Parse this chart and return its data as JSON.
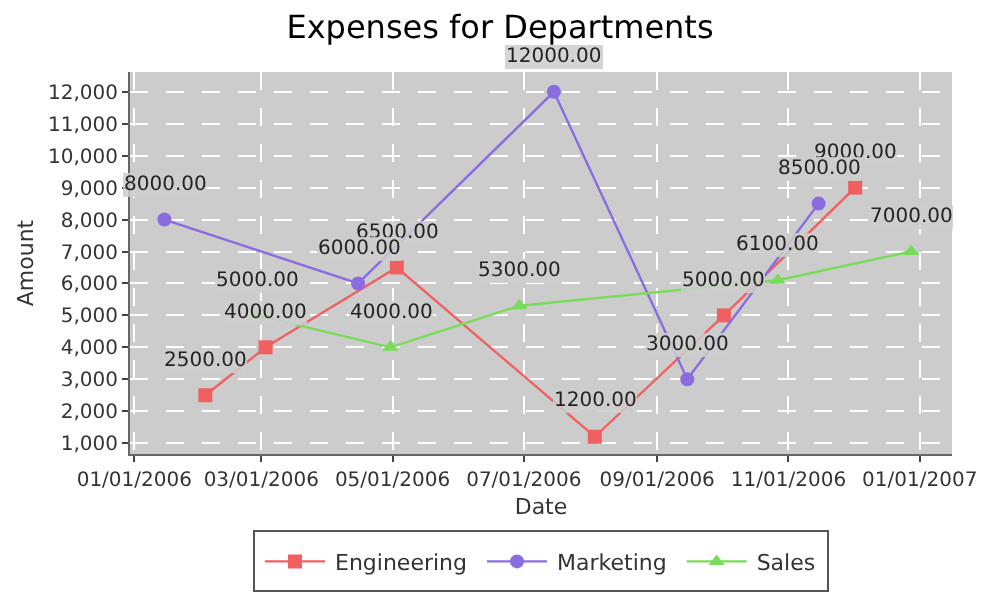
{
  "chart_data": {
    "type": "line",
    "title": "Expenses for Departments",
    "xlabel": "Date",
    "ylabel": "Amount",
    "series": [
      {
        "name": "Engineering",
        "color": "#f06060",
        "marker": "square",
        "x": [
          "2006-02-03",
          "2006-03-03",
          "2006-05-03",
          "2006-08-03",
          "2006-10-02",
          "2006-12-02"
        ],
        "values": [
          2500,
          4000,
          6500,
          1200,
          5000,
          9000
        ],
        "value_labels": [
          "2500.00",
          "4000.00",
          "6500.00",
          "1200.00",
          "5000.00",
          "9000.00"
        ]
      },
      {
        "name": "Marketing",
        "color": "#8a6be0",
        "marker": "circle",
        "x": [
          "2006-01-15",
          "2006-04-15",
          "2006-07-15",
          "2006-09-15",
          "2006-11-15"
        ],
        "values": [
          8000,
          6000,
          12000,
          3000,
          8500
        ],
        "value_labels": [
          "8000.00",
          "6000.00",
          "12000.00",
          "3000.00",
          "8500.00"
        ]
      },
      {
        "name": "Sales",
        "color": "#78dc58",
        "marker": "triangle",
        "x": [
          "2006-02-27",
          "2006-04-30",
          "2006-06-29",
          "2006-10-27",
          "2006-12-28"
        ],
        "values": [
          5000,
          4000,
          5300,
          6100,
          7000
        ],
        "value_labels": [
          "5000.00",
          "4000.00",
          "5300.00",
          "6100.00",
          "7000.00"
        ]
      }
    ],
    "xlim": [
      "2005-12-30",
      "2007-01-16"
    ],
    "xticks": [
      {
        "value": "2006-01-01",
        "label": "01/01/2006"
      },
      {
        "value": "2006-03-01",
        "label": "03/01/2006"
      },
      {
        "value": "2006-05-01",
        "label": "05/01/2006"
      },
      {
        "value": "2006-07-01",
        "label": "07/01/2006"
      },
      {
        "value": "2006-09-01",
        "label": "09/01/2006"
      },
      {
        "value": "2006-11-01",
        "label": "11/01/2006"
      },
      {
        "value": "2007-01-01",
        "label": "01/01/2007"
      }
    ],
    "ylim": [
      660,
      12620
    ],
    "yticks": [
      {
        "value": 1000,
        "label": "1,000"
      },
      {
        "value": 2000,
        "label": "2,000"
      },
      {
        "value": 3000,
        "label": "3,000"
      },
      {
        "value": 4000,
        "label": "4,000"
      },
      {
        "value": 5000,
        "label": "5,000"
      },
      {
        "value": 6000,
        "label": "6,000"
      },
      {
        "value": 7000,
        "label": "7,000"
      },
      {
        "value": 8000,
        "label": "8,000"
      },
      {
        "value": 9000,
        "label": "9,000"
      },
      {
        "value": 10000,
        "label": "10,000"
      },
      {
        "value": 11000,
        "label": "11,000"
      },
      {
        "value": 12000,
        "label": "12,000"
      }
    ],
    "grid": true,
    "legend": "bottom",
    "line_style": "solid"
  }
}
